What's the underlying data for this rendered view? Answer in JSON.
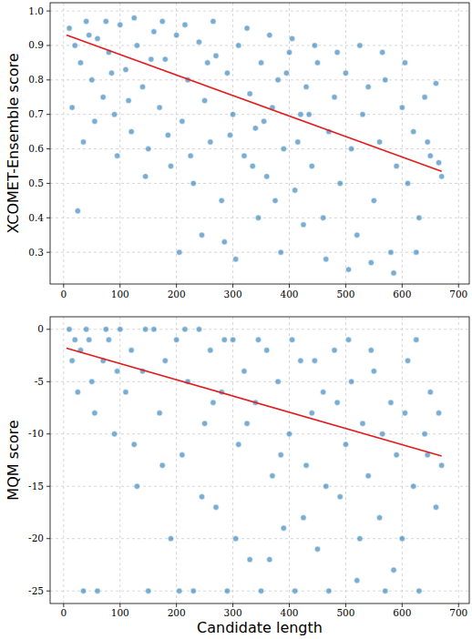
{
  "chart_data": [
    {
      "type": "scatter",
      "ylabel": "XCOMET-Ensemble score",
      "grid": true,
      "xlim": [
        -24,
        719
      ],
      "xticks": [
        0,
        100,
        200,
        300,
        400,
        500,
        600,
        700
      ],
      "ylim": [
        0.208,
        1.024
      ],
      "yticks": [
        0.3,
        0.4,
        0.5,
        0.6,
        0.7,
        0.8,
        0.9,
        {
          "value": 1,
          "label": "1.0"
        }
      ],
      "series": [
        {
          "type": "scatter",
          "color": "#1f77b4",
          "marker": "circle",
          "x": [
            10,
            20,
            30,
            40,
            50,
            60,
            70,
            80,
            90,
            100,
            110,
            120,
            130,
            140,
            150,
            160,
            170,
            180,
            190,
            200,
            210,
            220,
            230,
            240,
            250,
            260,
            270,
            280,
            290,
            300,
            310,
            320,
            330,
            340,
            350,
            360,
            370,
            380,
            390,
            400,
            410,
            420,
            430,
            440,
            450,
            460,
            470,
            480,
            490,
            500,
            510,
            520,
            530,
            540,
            550,
            560,
            570,
            580,
            590,
            600,
            610,
            620,
            630,
            640,
            650,
            660,
            670,
            25,
            35,
            15,
            45,
            75,
            95,
            125,
            145,
            175,
            205,
            215,
            245,
            265,
            285,
            305,
            325,
            345,
            365,
            385,
            405,
            425,
            445,
            465,
            485,
            505,
            525,
            545,
            565,
            585,
            605,
            625,
            645,
            665,
            55,
            85,
            115,
            155,
            185,
            225,
            255,
            295,
            335,
            355,
            375,
            395,
            415,
            435
          ],
          "values": [
            0.95,
            0.9,
            0.85,
            0.97,
            0.8,
            0.92,
            0.75,
            0.88,
            0.7,
            0.96,
            0.83,
            0.65,
            0.9,
            0.78,
            0.6,
            0.94,
            0.72,
            0.86,
            0.55,
            0.93,
            0.68,
            0.8,
            0.5,
            0.91,
            0.74,
            0.62,
            0.87,
            0.45,
            0.82,
            0.7,
            0.9,
            0.58,
            0.76,
            0.66,
            0.85,
            0.52,
            0.72,
            0.8,
            0.6,
            0.88,
            0.48,
            0.7,
            0.78,
            0.55,
            0.85,
            0.4,
            0.65,
            0.75,
            0.5,
            0.82,
            0.6,
            0.35,
            0.7,
            0.78,
            0.45,
            0.62,
            0.8,
            0.3,
            0.55,
            0.72,
            0.5,
            0.65,
            0.4,
            0.75,
            0.58,
            0.79,
            0.52,
            0.42,
            0.62,
            0.72,
            0.93,
            0.97,
            0.58,
            0.98,
            0.52,
            0.97,
            0.3,
            0.96,
            0.35,
            0.97,
            0.33,
            0.28,
            0.95,
            0.4,
            0.93,
            0.3,
            0.92,
            0.38,
            0.9,
            0.28,
            0.88,
            0.25,
            0.9,
            0.27,
            0.88,
            0.24,
            0.85,
            0.3,
            0.62,
            0.56,
            0.68,
            0.82,
            0.74,
            0.86,
            0.64,
            0.58,
            0.85,
            0.64,
            0.55,
            0.68,
            0.45,
            0.82,
            0.62,
            0.7
          ]
        },
        {
          "type": "line",
          "color": "#e41a1c",
          "line_style": "solid",
          "x": [
            5,
            670
          ],
          "values": [
            0.93,
            0.535
          ]
        }
      ]
    },
    {
      "type": "scatter",
      "xlabel": "Candidate length",
      "ylabel": "MQM score",
      "grid": true,
      "xlim": [
        -24,
        719
      ],
      "xticks": [
        0,
        100,
        200,
        300,
        400,
        500,
        600,
        700
      ],
      "ylim": [
        -26.2,
        1.2
      ],
      "yticks": [
        -25,
        -20,
        -15,
        -10,
        -5,
        0
      ],
      "series": [
        {
          "type": "scatter",
          "color": "#1f77b4",
          "marker": "circle",
          "x": [
            10,
            20,
            30,
            40,
            50,
            60,
            70,
            80,
            90,
            100,
            110,
            120,
            130,
            140,
            150,
            160,
            170,
            180,
            190,
            200,
            210,
            220,
            230,
            240,
            250,
            260,
            270,
            280,
            290,
            300,
            310,
            320,
            330,
            340,
            350,
            360,
            370,
            380,
            390,
            400,
            410,
            420,
            430,
            440,
            450,
            460,
            470,
            480,
            490,
            500,
            510,
            520,
            530,
            540,
            550,
            560,
            570,
            580,
            590,
            600,
            610,
            620,
            630,
            640,
            650,
            660,
            670,
            15,
            25,
            35,
            45,
            55,
            75,
            95,
            125,
            145,
            175,
            205,
            215,
            245,
            265,
            285,
            305,
            325,
            345,
            365,
            385,
            405,
            425,
            445,
            465,
            485,
            505,
            525,
            545,
            565,
            585,
            605,
            625,
            645,
            665
          ],
          "values": [
            0,
            -1,
            -2,
            0,
            -5,
            -25,
            -3,
            -1,
            -10,
            0,
            -6,
            -2,
            -15,
            -4,
            -25,
            0,
            -8,
            -3,
            -20,
            -1,
            -12,
            -5,
            -25,
            0,
            -9,
            -2,
            -17,
            -6,
            -25,
            -1,
            -11,
            -4,
            -22,
            -7,
            -25,
            -2,
            -14,
            -5,
            -19,
            -10,
            -25,
            -3,
            -13,
            -8,
            -21,
            -6,
            -25,
            -2,
            -16,
            -11,
            -5,
            -24,
            -9,
            -14,
            -4,
            -18,
            -25,
            -7,
            -12,
            -20,
            -3,
            -15,
            -25,
            -10,
            -6,
            -17,
            -13,
            -3,
            -6,
            -25,
            -1,
            -8,
            0,
            -4,
            -11,
            0,
            -13,
            -25,
            0,
            -16,
            -7,
            -1,
            -20,
            -9,
            -1,
            -22,
            -12,
            -1,
            -18,
            -3,
            -15,
            -7,
            -1,
            -20,
            -2,
            -10,
            -23,
            -8,
            -1,
            -12,
            -8
          ]
        },
        {
          "type": "line",
          "color": "#e41a1c",
          "line_style": "solid",
          "x": [
            5,
            670
          ],
          "values": [
            -1.8,
            -12.1
          ]
        }
      ]
    }
  ]
}
